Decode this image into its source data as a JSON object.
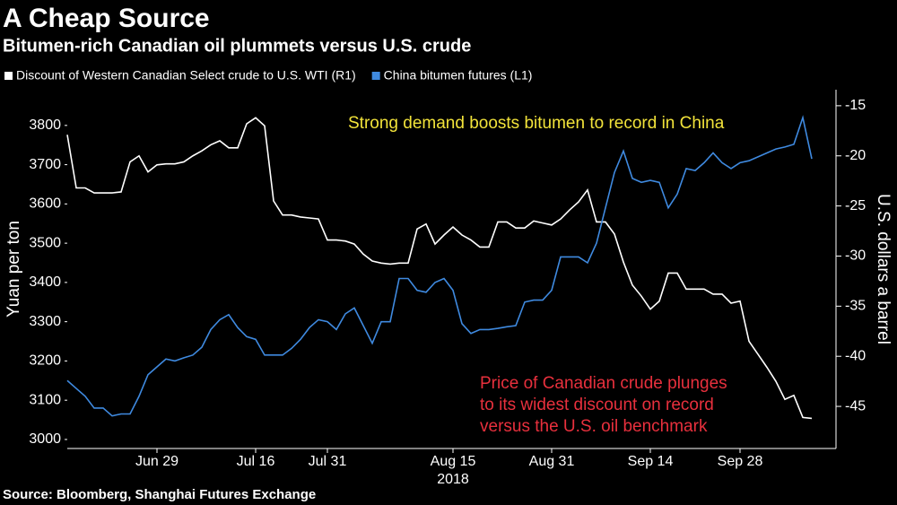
{
  "chart_data": {
    "type": "line",
    "title": "A Cheap Source",
    "subtitle": "Bitumen-rich Canadian oil plummets versus U.S. crude",
    "y_label": "Yuan per ton",
    "y2_label": "U.S. dollars a barrel",
    "x_sublabel": "2018",
    "source": "Source: Bloomberg, Shanghai Futures Exchange",
    "annotations": [
      {
        "lines": [
          "Strong demand boosts bitumen to record in China"
        ],
        "color": "#f2e33a"
      },
      {
        "lines": [
          "Price of Canadian crude plunges",
          "to its widest discount on record",
          "versus the U.S. oil benchmark"
        ],
        "color": "#e8303d"
      }
    ],
    "categories": [
      null,
      null,
      null,
      null,
      null,
      null,
      null,
      null,
      null,
      null,
      "Jun 29",
      null,
      null,
      null,
      null,
      null,
      null,
      null,
      null,
      null,
      null,
      "Jul 16",
      null,
      null,
      null,
      null,
      null,
      null,
      null,
      "Jul 31",
      null,
      null,
      null,
      null,
      null,
      null,
      null,
      null,
      null,
      null,
      null,
      null,
      null,
      "Aug 15",
      null,
      null,
      null,
      null,
      null,
      null,
      null,
      null,
      null,
      null,
      "Aug 31",
      null,
      null,
      null,
      null,
      null,
      null,
      null,
      null,
      null,
      null,
      "Sep 14",
      null,
      null,
      null,
      null,
      null,
      null,
      null,
      null,
      null,
      "Sep 28",
      null,
      null,
      null,
      null,
      null,
      null,
      null,
      null
    ],
    "series": [
      {
        "name": "Discount of Western Canadian Select crude to U.S. WTI (R1)",
        "color": "#ffffff",
        "axis": "y2",
        "values": [
          -17.9,
          -23.2,
          -23.2,
          -23.7,
          -23.7,
          -23.7,
          -23.6,
          -20.6,
          -20.0,
          -21.6,
          -20.9,
          -20.8,
          -20.8,
          -20.6,
          -20.0,
          -19.5,
          -18.9,
          -18.5,
          -19.2,
          -19.2,
          -16.8,
          -16.2,
          -17.0,
          -24.5,
          -25.9,
          -25.9,
          -26.1,
          -26.2,
          -26.3,
          -28.4,
          -28.4,
          -28.5,
          -28.8,
          -29.8,
          -30.5,
          -30.7,
          -30.8,
          -30.7,
          -30.7,
          -27.3,
          -26.8,
          -28.8,
          -27.9,
          -27.1,
          -27.9,
          -28.4,
          -29.1,
          -29.1,
          -26.6,
          -26.6,
          -27.2,
          -27.2,
          -26.5,
          -26.7,
          -26.9,
          -26.3,
          -25.4,
          -24.6,
          -23.4,
          -26.6,
          -26.6,
          -27.8,
          -30.6,
          -32.9,
          -34.0,
          -35.3,
          -34.5,
          -31.7,
          -31.7,
          -33.3,
          -33.3,
          -33.3,
          -33.8,
          -33.8,
          -34.7,
          -34.5,
          -38.5,
          -39.8,
          -41.1,
          -42.5,
          -44.3,
          -43.9,
          -46.1,
          -46.2
        ]
      },
      {
        "name": "China bitumen futures (L1)",
        "color": "#3f8ae0",
        "axis": "y",
        "values": [
          3150,
          3130,
          3110,
          3080,
          3080,
          3060,
          3065,
          3065,
          3110,
          3165,
          3185,
          3205,
          3200,
          3208,
          3215,
          3235,
          3280,
          3305,
          3318,
          3285,
          3262,
          3255,
          3215,
          3215,
          3215,
          3232,
          3255,
          3285,
          3305,
          3300,
          3280,
          3320,
          3335,
          3290,
          3245,
          3300,
          3300,
          3410,
          3410,
          3380,
          3375,
          3400,
          3410,
          3380,
          3295,
          3270,
          3280,
          3280,
          3283,
          3287,
          3290,
          3350,
          3355,
          3355,
          3380,
          3465,
          3465,
          3465,
          3450,
          3500,
          3590,
          3680,
          3735,
          3665,
          3655,
          3660,
          3655,
          3590,
          3625,
          3690,
          3685,
          3705,
          3730,
          3705,
          3690,
          3705,
          3710,
          3720,
          3730,
          3740,
          3745,
          3752,
          3820,
          3715
        ]
      }
    ],
    "ylim": [
      2977,
      3891
    ],
    "yticks": [
      3000,
      3100,
      3200,
      3300,
      3400,
      3500,
      3600,
      3700,
      3800
    ],
    "y2lim": [
      -49.2,
      -13.4
    ],
    "y2ticks": [
      -45,
      -40,
      -35,
      -30,
      -25,
      -20,
      -15
    ]
  }
}
